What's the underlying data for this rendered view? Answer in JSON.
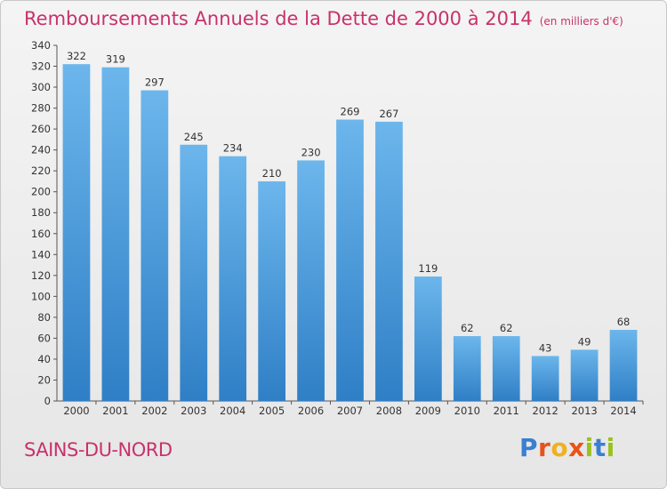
{
  "header": {
    "title": "Remboursements Annuels de la Dette de 2000 à 2014",
    "subtitle": "(en milliers d'€)"
  },
  "footer": {
    "city": "SAINS-DU-NORD",
    "logo": "Proxiti"
  },
  "colors": {
    "title": "#c8326a",
    "bar_top": "#6cb6ec",
    "bar_bottom": "#2f7fc6"
  },
  "chart_data": {
    "type": "bar",
    "title": "Remboursements Annuels de la Dette de 2000 à 2014",
    "subtitle": "(en milliers d'€)",
    "xlabel": "",
    "ylabel": "",
    "categories": [
      "2000",
      "2001",
      "2002",
      "2003",
      "2004",
      "2005",
      "2006",
      "2007",
      "2008",
      "2009",
      "2010",
      "2011",
      "2012",
      "2013",
      "2014"
    ],
    "values": [
      322,
      319,
      297,
      245,
      234,
      210,
      230,
      269,
      267,
      119,
      62,
      62,
      43,
      49,
      68
    ],
    "ylim": [
      0,
      340
    ],
    "yticks": [
      0,
      20,
      40,
      60,
      80,
      100,
      120,
      140,
      160,
      180,
      200,
      220,
      240,
      260,
      280,
      300,
      320,
      340
    ],
    "grid": false,
    "legend": "none"
  }
}
